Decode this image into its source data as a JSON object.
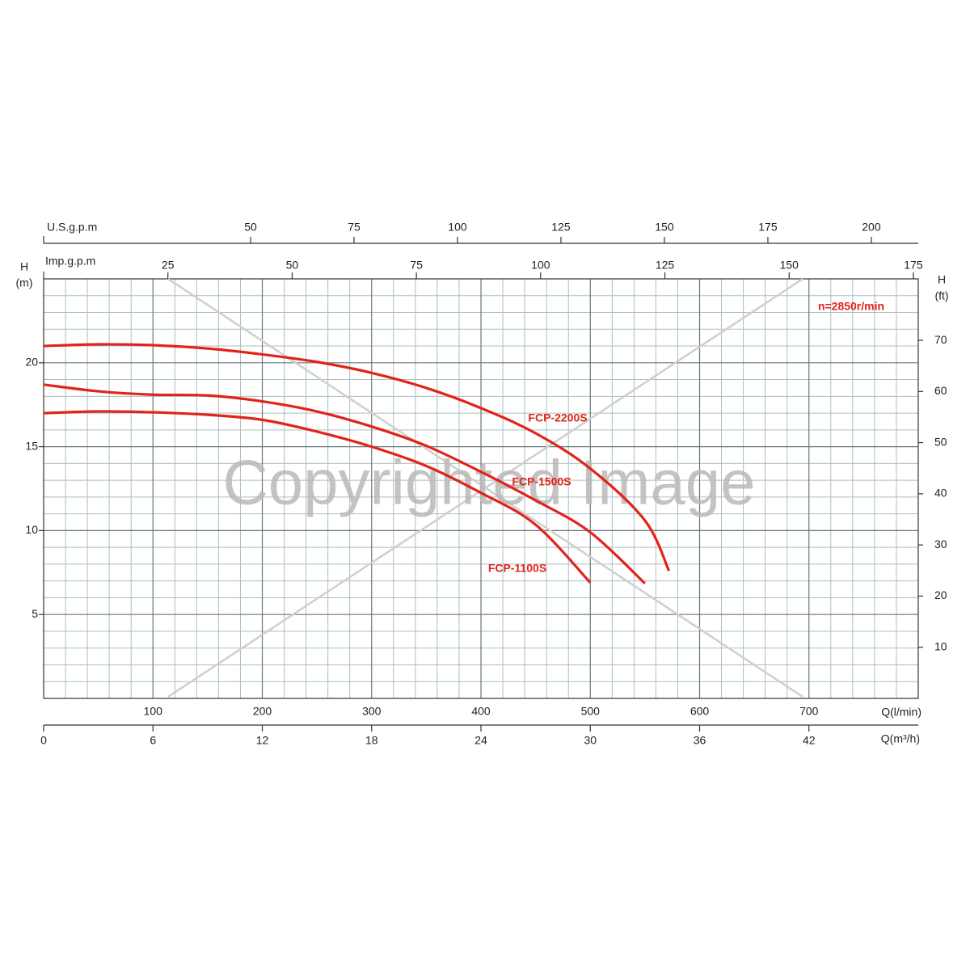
{
  "chart_data": {
    "type": "line",
    "speed_note": "n=2850r/min",
    "watermark": "Copyrighted Image",
    "xlabel": "Q(l/min)",
    "xlim": [
      0,
      800
    ],
    "xticks": [
      100,
      200,
      300,
      400,
      500,
      600,
      700
    ],
    "xminor": [
      20,
      40,
      60,
      80,
      120,
      140,
      160,
      180,
      220,
      240,
      260,
      280,
      320,
      340,
      360,
      380,
      420,
      440,
      460,
      480,
      520,
      540,
      560,
      580,
      620,
      640,
      660,
      680,
      720,
      740,
      760,
      780
    ],
    "x2label": "Q(m³/h)",
    "x2lim": [
      0,
      48
    ],
    "x2ticks": [
      0,
      6,
      12,
      18,
      24,
      30,
      36,
      42
    ],
    "top_axes": [
      {
        "label": "U.S.g.p.m",
        "lim": [
          0,
          211.34
        ],
        "ticks": [
          50,
          75,
          100,
          125,
          150,
          175,
          200
        ]
      },
      {
        "label": "Imp.g.p.m",
        "lim": [
          0,
          175.98
        ],
        "ticks": [
          25,
          50,
          75,
          100,
          125,
          150,
          175
        ]
      }
    ],
    "ylabel": "H",
    "yunit": "(m)",
    "ylim": [
      0,
      25
    ],
    "yticks": [
      5,
      10,
      15,
      20
    ],
    "yminor": [
      1,
      2,
      3,
      4,
      6,
      7,
      8,
      9,
      11,
      12,
      13,
      14,
      16,
      17,
      18,
      19,
      21,
      22,
      23,
      24
    ],
    "y2label": "H",
    "y2unit": "(ft)",
    "y2lim": [
      0,
      82.02
    ],
    "y2ticks": [
      10,
      20,
      30,
      40,
      50,
      60,
      70
    ],
    "grid": true,
    "series": [
      {
        "name": "FCP-2200S",
        "color": "#e2231a",
        "x": [
          0,
          50,
          100,
          150,
          200,
          250,
          300,
          350,
          400,
          450,
          500,
          550,
          572
        ],
        "values": [
          21.0,
          21.1,
          21.05,
          20.85,
          20.5,
          20.05,
          19.4,
          18.5,
          17.3,
          15.8,
          13.7,
          10.6,
          7.6
        ]
      },
      {
        "name": "FCP-1500S",
        "color": "#e2231a",
        "x": [
          0,
          50,
          100,
          150,
          200,
          250,
          300,
          350,
          400,
          450,
          500,
          550
        ],
        "values": [
          18.7,
          18.3,
          18.1,
          18.05,
          17.7,
          17.1,
          16.2,
          15.05,
          13.5,
          11.8,
          9.9,
          6.85
        ]
      },
      {
        "name": "FCP-1100S",
        "color": "#e2231a",
        "x": [
          0,
          50,
          100,
          150,
          200,
          250,
          300,
          350,
          400,
          450,
          500
        ],
        "values": [
          17.0,
          17.1,
          17.05,
          16.9,
          16.6,
          15.9,
          15.0,
          13.85,
          12.25,
          10.35,
          6.9
        ]
      }
    ]
  }
}
